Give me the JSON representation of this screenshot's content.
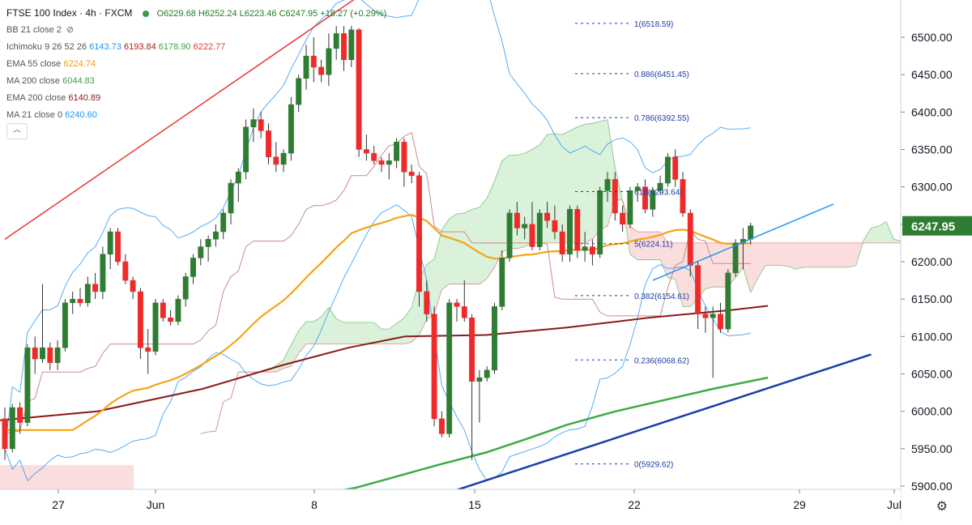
{
  "legend": {
    "symbol": "FTSE 100 Index · 4h · FXCM",
    "ohlc": "O6229.68  H6252.24  L6223.46  C6247.95  +18.27 (+0.29%)",
    "indicators": [
      {
        "label": "BB 21 close 2",
        "values": [],
        "colors": []
      },
      {
        "label": "Ichimoku 9 26 52 26",
        "values": [
          "6143.73",
          "6193.84",
          "6178.90",
          "6222.77"
        ],
        "colors": [
          "#2196f3",
          "#b71c1c",
          "#43a047",
          "#e53935"
        ]
      },
      {
        "label": "EMA 55 close",
        "values": [
          "6224.74"
        ],
        "colors": [
          "#f39c12"
        ]
      },
      {
        "label": "MA 200 close",
        "values": [
          "6044.83"
        ],
        "colors": [
          "#43a047"
        ]
      },
      {
        "label": "EMA 200 close",
        "values": [
          "6140.89"
        ],
        "colors": [
          "#8b1a1a"
        ]
      },
      {
        "label": "MA 21 close 0",
        "values": [
          "6240.60"
        ],
        "colors": [
          "#2196f3"
        ]
      }
    ]
  },
  "colors": {
    "up": "#2e7d32",
    "down": "#ef2a2a",
    "ema55": "#f5a31a",
    "ma200": "#3daa45",
    "ema200": "#8b1a1a",
    "bb": "#42a5f5",
    "ichimoku_lagging": "#c98b8b",
    "cloud_green": "#d6efd6",
    "cloud_red": "#fbd9d9",
    "trendline_red": "#e53935",
    "trendline_blue": "#1a3ea8",
    "fib": "#1a3ea8",
    "last_price_bg": "#2e7d32"
  },
  "chart_data": {
    "type": "candlestick",
    "symbol": "FTSE 100 Index",
    "timeframe": "4h",
    "source": "FXCM",
    "price_axis": {
      "range": [
        5890,
        6540
      ],
      "ticks": [
        "5900.00",
        "5950.00",
        "6000.00",
        "6050.00",
        "6100.00",
        "6150.00",
        "6200.00",
        "6250.00",
        "6300.00",
        "6350.00",
        "6400.00",
        "6450.00",
        "6500.00"
      ]
    },
    "time_axis": {
      "labels": [
        "27",
        "Jun",
        "8",
        "15",
        "22",
        "29",
        "Jul"
      ],
      "label_bar_index": [
        6,
        19,
        39,
        59,
        79,
        99,
        110
      ],
      "bars_visible": 125
    },
    "last_price": "6247.95",
    "candles": [
      [
        5990,
        6005,
        5935,
        5950
      ],
      [
        5950,
        6010,
        5945,
        6005
      ],
      [
        6005,
        6012,
        5970,
        5985
      ],
      [
        5985,
        6090,
        5980,
        6085
      ],
      [
        6085,
        6100,
        6050,
        6070
      ],
      [
        6070,
        6170,
        6065,
        6085
      ],
      [
        6085,
        6092,
        6055,
        6065
      ],
      [
        6065,
        6095,
        6055,
        6085
      ],
      [
        6085,
        6150,
        6080,
        6145
      ],
      [
        6145,
        6160,
        6130,
        6150
      ],
      [
        6150,
        6165,
        6140,
        6145
      ],
      [
        6145,
        6180,
        6140,
        6170
      ],
      [
        6170,
        6185,
        6150,
        6160
      ],
      [
        6160,
        6220,
        6150,
        6210
      ],
      [
        6210,
        6245,
        6190,
        6240
      ],
      [
        6240,
        6245,
        6195,
        6200
      ],
      [
        6200,
        6210,
        6170,
        6175
      ],
      [
        6175,
        6180,
        6150,
        6160
      ],
      [
        6160,
        6165,
        6070,
        6085
      ],
      [
        6085,
        6110,
        6050,
        6080
      ],
      [
        6080,
        6150,
        6075,
        6145
      ],
      [
        6145,
        6150,
        6120,
        6125
      ],
      [
        6125,
        6135,
        6115,
        6120
      ],
      [
        6120,
        6155,
        6115,
        6150
      ],
      [
        6150,
        6185,
        6140,
        6180
      ],
      [
        6180,
        6210,
        6170,
        6205
      ],
      [
        6205,
        6230,
        6195,
        6220
      ],
      [
        6220,
        6235,
        6200,
        6230
      ],
      [
        6230,
        6250,
        6220,
        6240
      ],
      [
        6240,
        6270,
        6230,
        6265
      ],
      [
        6265,
        6310,
        6250,
        6305
      ],
      [
        6305,
        6325,
        6280,
        6320
      ],
      [
        6320,
        6390,
        6310,
        6380
      ],
      [
        6380,
        6405,
        6360,
        6390
      ],
      [
        6390,
        6400,
        6365,
        6375
      ],
      [
        6375,
        6385,
        6330,
        6340
      ],
      [
        6340,
        6360,
        6320,
        6330
      ],
      [
        6330,
        6350,
        6320,
        6345
      ],
      [
        6345,
        6420,
        6335,
        6410
      ],
      [
        6410,
        6450,
        6400,
        6445
      ],
      [
        6445,
        6490,
        6430,
        6475
      ],
      [
        6475,
        6500,
        6440,
        6460
      ],
      [
        6460,
        6470,
        6440,
        6450
      ],
      [
        6450,
        6505,
        6435,
        6485
      ],
      [
        6485,
        6515,
        6470,
        6505
      ],
      [
        6505,
        6515,
        6455,
        6470
      ],
      [
        6470,
        6515,
        6460,
        6510
      ],
      [
        6510,
        6512,
        6340,
        6350
      ],
      [
        6350,
        6370,
        6335,
        6345
      ],
      [
        6345,
        6355,
        6330,
        6335
      ],
      [
        6335,
        6340,
        6320,
        6330
      ],
      [
        6330,
        6345,
        6310,
        6335
      ],
      [
        6335,
        6365,
        6325,
        6360
      ],
      [
        6360,
        6365,
        6300,
        6320
      ],
      [
        6320,
        6330,
        6305,
        6315
      ],
      [
        6315,
        6320,
        6140,
        6160
      ],
      [
        6160,
        6175,
        6120,
        6130
      ],
      [
        6130,
        6140,
        5980,
        5990
      ],
      [
        5990,
        6000,
        5965,
        5970
      ],
      [
        5970,
        6150,
        5965,
        6145
      ],
      [
        6145,
        6150,
        6120,
        6140
      ],
      [
        6140,
        6175,
        6120,
        6125
      ],
      [
        6125,
        6130,
        5935,
        6040
      ],
      [
        6040,
        6055,
        5985,
        6045
      ],
      [
        6045,
        6060,
        6040,
        6055
      ],
      [
        6055,
        6145,
        6050,
        6140
      ],
      [
        6140,
        6215,
        6135,
        6205
      ],
      [
        6205,
        6270,
        6200,
        6265
      ],
      [
        6265,
        6280,
        6235,
        6245
      ],
      [
        6245,
        6260,
        6230,
        6250
      ],
      [
        6250,
        6280,
        6215,
        6220
      ],
      [
        6220,
        6270,
        6215,
        6265
      ],
      [
        6265,
        6280,
        6245,
        6255
      ],
      [
        6255,
        6275,
        6230,
        6240
      ],
      [
        6240,
        6250,
        6200,
        6210
      ],
      [
        6210,
        6275,
        6200,
        6270
      ],
      [
        6270,
        6275,
        6205,
        6215
      ],
      [
        6215,
        6240,
        6200,
        6220
      ],
      [
        6220,
        6230,
        6195,
        6210
      ],
      [
        6210,
        6300,
        6205,
        6295
      ],
      [
        6295,
        6320,
        6280,
        6310
      ],
      [
        6310,
        6320,
        6255,
        6265
      ],
      [
        6265,
        6275,
        6240,
        6250
      ],
      [
        6250,
        6300,
        6245,
        6295
      ],
      [
        6295,
        6305,
        6280,
        6300
      ],
      [
        6300,
        6310,
        6265,
        6270
      ],
      [
        6270,
        6300,
        6260,
        6295
      ],
      [
        6295,
        6315,
        6290,
        6305
      ],
      [
        6305,
        6345,
        6300,
        6340
      ],
      [
        6340,
        6350,
        6300,
        6310
      ],
      [
        6310,
        6320,
        6260,
        6265
      ],
      [
        6265,
        6270,
        6180,
        6195
      ],
      [
        6195,
        6200,
        6110,
        6130
      ],
      [
        6130,
        6140,
        6105,
        6125
      ],
      [
        6125,
        6140,
        6045,
        6130
      ],
      [
        6130,
        6145,
        6105,
        6110
      ],
      [
        6110,
        6190,
        6105,
        6185
      ],
      [
        6185,
        6230,
        6180,
        6225
      ],
      [
        6225,
        6245,
        6190,
        6230
      ],
      [
        6230,
        6252,
        6223,
        6248
      ]
    ],
    "fibonacci_levels": [
      {
        "ratio": "1",
        "price": 6518.59,
        "label": "1(6518.59)"
      },
      {
        "ratio": "0.886",
        "price": 6451.45,
        "label": "0.886(6451.45)"
      },
      {
        "ratio": "0.786",
        "price": 6392.55,
        "label": "0.786(6392.55)"
      },
      {
        "ratio": "0.618",
        "price": 6293.64,
        "label": "618(6293.64)"
      },
      {
        "ratio": "0.5",
        "price": 6224.11,
        "label": "5(6224.11)"
      },
      {
        "ratio": "0.382",
        "price": 6154.61,
        "label": "0.382(6154.61)"
      },
      {
        "ratio": "0.236",
        "price": 6068.62,
        "label": "0.236(6068.62)"
      },
      {
        "ratio": "0",
        "price": 5929.62,
        "label": "0(5929.62)"
      }
    ],
    "trendlines": [
      {
        "points": [
          [
            0,
            6230
          ],
          [
            47,
            6555
          ]
        ],
        "color": "#e53935"
      },
      {
        "points": [
          [
            57,
            5885
          ],
          [
            115,
            6076
          ]
        ],
        "color": "#1a3ea8"
      },
      {
        "points": [
          [
            86,
            6175
          ],
          [
            110,
            6277
          ]
        ],
        "color": "#2196f3"
      }
    ]
  }
}
